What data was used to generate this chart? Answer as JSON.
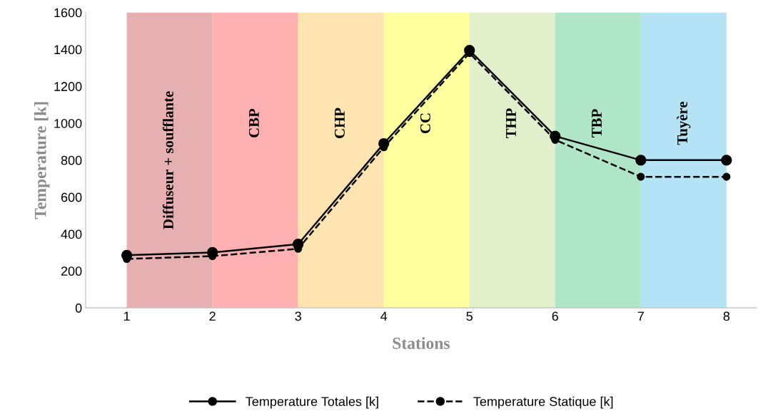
{
  "chart_data": {
    "type": "line",
    "xlabel": "Stations",
    "ylabel": "Temperature [k]",
    "x": [
      1,
      2,
      3,
      4,
      5,
      6,
      7,
      8
    ],
    "xlim": [
      0.52,
      8.35
    ],
    "xticks": [
      1,
      2,
      3,
      4,
      5,
      6,
      7,
      8
    ],
    "ylim": [
      0,
      1600
    ],
    "yticks": [
      0,
      200,
      400,
      600,
      800,
      1000,
      1200,
      1400,
      1600
    ],
    "series": [
      {
        "name": "Temperature Totales [k]",
        "color": "#000000",
        "line_style": "solid",
        "values": [
          285,
          300,
          345,
          890,
          1395,
          930,
          800,
          800
        ]
      },
      {
        "name": "Temperature Statique [k]",
        "color": "#000000",
        "line_style": "dashed",
        "values": [
          265,
          280,
          320,
          870,
          1380,
          910,
          710,
          710
        ]
      }
    ],
    "bands": [
      {
        "axis": "x",
        "from": 1,
        "to": 2,
        "label": "Diffuseur + soufflante",
        "color": "#e6b0b0"
      },
      {
        "axis": "x",
        "from": 2,
        "to": 3,
        "label": "CBP",
        "color": "#ffb0b0"
      },
      {
        "axis": "x",
        "from": 3,
        "to": 4,
        "label": "CHP",
        "color": "#fde4b0"
      },
      {
        "axis": "x",
        "from": 4,
        "to": 5,
        "label": "CC",
        "color": "#ffffa0"
      },
      {
        "axis": "x",
        "from": 5,
        "to": 6,
        "label": "THP",
        "color": "#e2efcb"
      },
      {
        "axis": "x",
        "from": 6,
        "to": 7,
        "label": "TBP",
        "color": "#b0e6c8"
      },
      {
        "axis": "x",
        "from": 7,
        "to": 8,
        "label": "Tuyère",
        "color": "#b3e3f5"
      }
    ],
    "marker": "circle",
    "grid": false,
    "legend": "bottom"
  }
}
